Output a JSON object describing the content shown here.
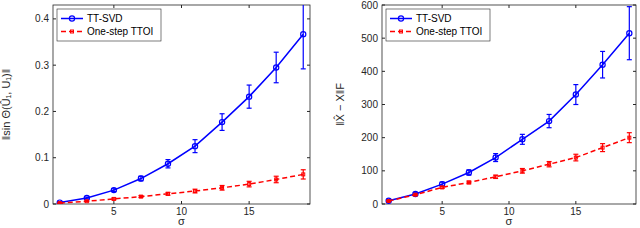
{
  "chart_data": [
    {
      "type": "line",
      "xlabel": "σ",
      "ylabel": "‖sin Θ(Û₁, U₁)‖",
      "x": [
        1,
        3,
        5,
        7,
        9,
        11,
        13,
        15,
        17,
        19
      ],
      "xlim": [
        0.5,
        19.5
      ],
      "xticks": [
        5,
        10,
        15
      ],
      "ylim": [
        0,
        0.43
      ],
      "yticks": [
        0,
        0.1,
        0.2,
        0.3,
        0.4
      ],
      "grid": false,
      "legend": "upper left",
      "series": [
        {
          "name": "TT-SVD",
          "color": "#0000ff",
          "marker": "circle",
          "line_style": "solid",
          "values": [
            0.003,
            0.013,
            0.03,
            0.055,
            0.087,
            0.125,
            0.177,
            0.232,
            0.295,
            0.367
          ],
          "errors": [
            0.001,
            0.002,
            0.003,
            0.005,
            0.009,
            0.014,
            0.018,
            0.025,
            0.033,
            0.075
          ]
        },
        {
          "name": "One-step TTOI",
          "color": "#ff0000",
          "marker": "square",
          "line_style": "dashed",
          "values": [
            0.002,
            0.006,
            0.011,
            0.016,
            0.022,
            0.028,
            0.035,
            0.043,
            0.053,
            0.064
          ],
          "errors": [
            0.0005,
            0.001,
            0.002,
            0.002,
            0.003,
            0.004,
            0.005,
            0.006,
            0.007,
            0.01
          ]
        }
      ]
    },
    {
      "type": "line",
      "xlabel": "σ",
      "ylabel": "‖X̂ − X‖F",
      "x": [
        1,
        3,
        5,
        7,
        9,
        11,
        13,
        15,
        17,
        19
      ],
      "xlim": [
        0.5,
        19.5
      ],
      "xticks": [
        5,
        10,
        15
      ],
      "ylim": [
        0,
        600
      ],
      "yticks": [
        0,
        100,
        200,
        300,
        400,
        500,
        600
      ],
      "grid": false,
      "legend": "upper left",
      "series": [
        {
          "name": "TT-SVD",
          "color": "#0000ff",
          "marker": "circle",
          "line_style": "solid",
          "values": [
            10,
            30,
            60,
            95,
            140,
            195,
            250,
            330,
            420,
            515
          ],
          "errors": [
            2,
            4,
            6,
            8,
            12,
            15,
            20,
            30,
            40,
            80
          ]
        },
        {
          "name": "One-step TTOI",
          "color": "#ff0000",
          "marker": "square",
          "line_style": "dashed",
          "values": [
            9,
            28,
            50,
            65,
            82,
            100,
            120,
            140,
            170,
            200
          ],
          "errors": [
            1,
            2,
            3,
            4,
            5,
            7,
            8,
            10,
            12,
            15
          ]
        }
      ]
    }
  ]
}
